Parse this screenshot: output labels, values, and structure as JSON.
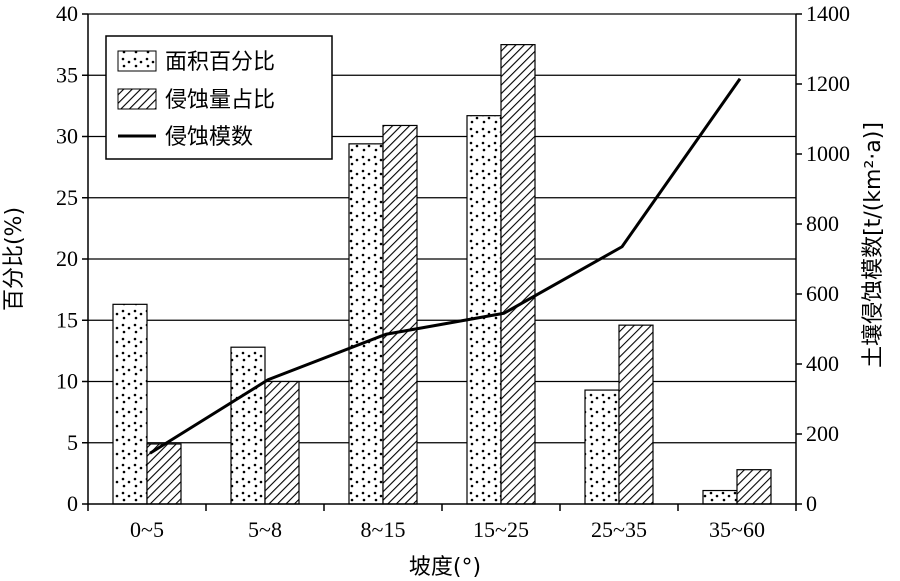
{
  "chart_data": {
    "type": "bar",
    "categories": [
      "0~5",
      "5~8",
      "8~15",
      "15~25",
      "25~35",
      "35~60"
    ],
    "series": [
      {
        "name": "面积百分比",
        "kind": "bar",
        "axis": "left",
        "pattern": "dots",
        "values": [
          16.3,
          12.8,
          29.4,
          31.7,
          9.3,
          1.1
        ]
      },
      {
        "name": "侵蚀量占比",
        "kind": "bar",
        "axis": "left",
        "pattern": "hatch",
        "values": [
          4.9,
          10.0,
          30.9,
          37.5,
          14.6,
          2.8
        ]
      },
      {
        "name": "侵蚀模数",
        "kind": "line",
        "axis": "right",
        "values": [
          145,
          355,
          485,
          545,
          735,
          1215
        ]
      }
    ],
    "xlabel": "坡度(°)",
    "ylabel": "百分比(%)",
    "y2label": "土壤侵蚀模数[t/(km²·a)]",
    "ylim": [
      0,
      40
    ],
    "y2lim": [
      0,
      1400
    ],
    "yticks": [
      "0",
      "5",
      "10",
      "15",
      "20",
      "25",
      "30",
      "35",
      "40"
    ],
    "y2ticks": [
      "0",
      "200",
      "400",
      "600",
      "800",
      "1000",
      "1200",
      "1400"
    ],
    "grid": "horizontal",
    "legend_position": "top-left",
    "colors": {
      "ink": "#000000",
      "background": "#ffffff"
    }
  }
}
